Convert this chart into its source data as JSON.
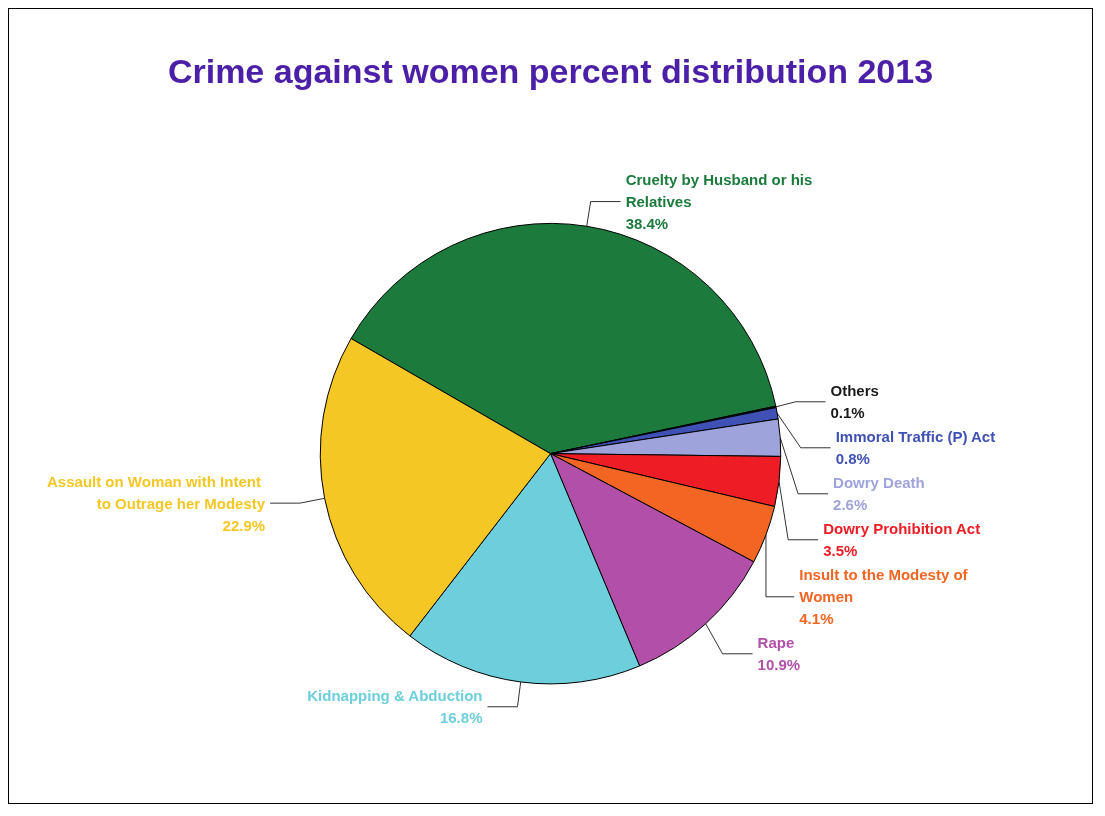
{
  "chart_data": {
    "type": "pie",
    "title": "Crime against women percent distribution 2013",
    "categories": [
      "Cruelty by Husband or his Relatives",
      "Others",
      "Immoral Traffic (P) Act",
      "Dowry Death",
      "Dowry Prohibition Act",
      "Insult to the Modesty of Women",
      "Rape",
      "Kidnapping & Abduction",
      "Assault on Woman with Intent to Outrage her Modesty"
    ],
    "values": [
      38.4,
      0.1,
      0.8,
      2.6,
      3.5,
      4.1,
      10.9,
      16.8,
      22.9
    ],
    "value_labels": [
      "38.4%",
      "0.1%",
      "0.8%",
      "2.6%",
      "3.5%",
      "4.1%",
      "10.9%",
      "16.8%",
      "22.9%"
    ],
    "colors": [
      "#1b7a3c",
      "#1a1a1a",
      "#3f51b5",
      "#9fa3dc",
      "#ee1c24",
      "#f26522",
      "#b24fa9",
      "#6dcfdb",
      "#f5c724"
    ],
    "legend": false
  }
}
